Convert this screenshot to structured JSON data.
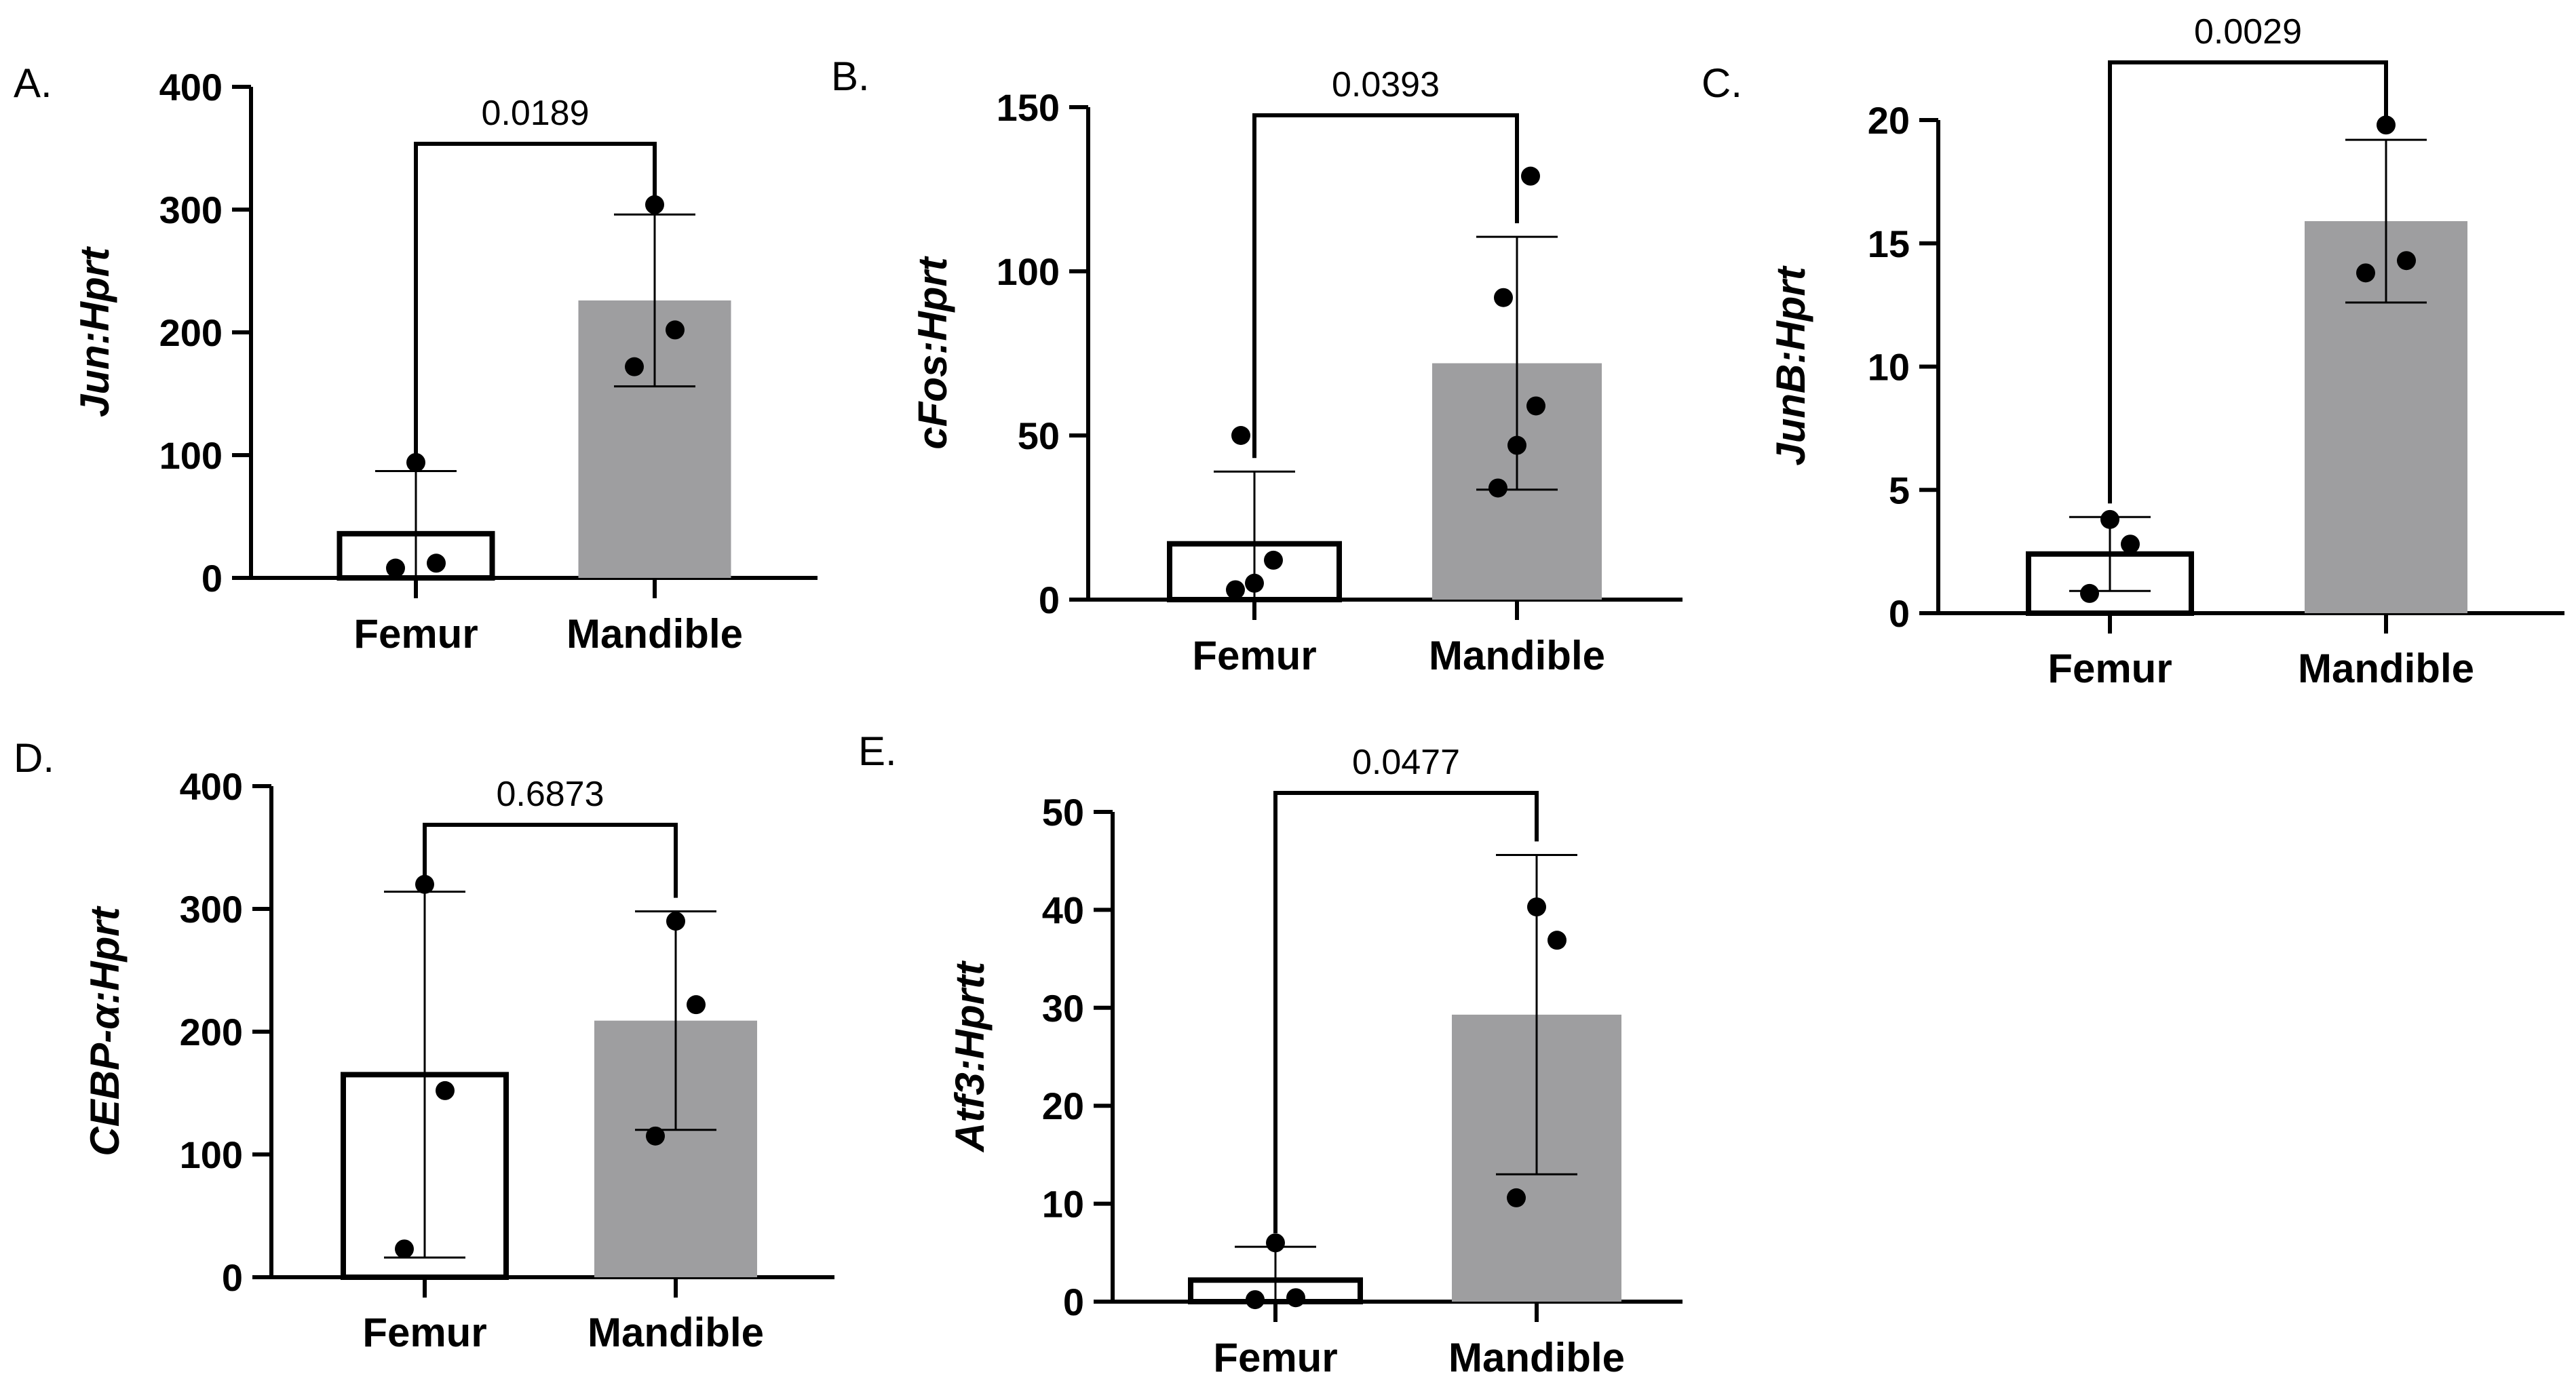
{
  "colors": {
    "axis": "#000000",
    "filled_bar": "#9e9ea0",
    "open_bar_fill": "#ffffff",
    "point": "#000000"
  },
  "chart_data": [
    {
      "panel": "A.",
      "type": "bar",
      "ylabel": "Jun:Hprt",
      "categories": [
        "Femur",
        "Mandible"
      ],
      "ylim": [
        0,
        400
      ],
      "yticks": [
        "0",
        "100",
        "200",
        "300",
        "400"
      ],
      "means": [
        36,
        226
      ],
      "sd": [
        51,
        70
      ],
      "points": [
        [
          8,
          12,
          94
        ],
        [
          172,
          202,
          304
        ]
      ],
      "p_value": "0.0189"
    },
    {
      "panel": "B.",
      "type": "bar",
      "ylabel": "cFos:Hprt",
      "categories": [
        "Femur",
        "Mandible"
      ],
      "ylim": [
        0,
        150
      ],
      "yticks": [
        "0",
        "50",
        "100",
        "150"
      ],
      "means": [
        17,
        72
      ],
      "sd": [
        22,
        38.5
      ],
      "points": [
        [
          3,
          5,
          12,
          50
        ],
        [
          34,
          47,
          59,
          92,
          129
        ]
      ],
      "p_value": "0.0393"
    },
    {
      "panel": "C.",
      "type": "bar",
      "ylabel": "JunB:Hprt",
      "categories": [
        "Femur",
        "Mandible"
      ],
      "ylim": [
        0,
        20
      ],
      "yticks": [
        "0",
        "5",
        "10",
        "15",
        "20"
      ],
      "means": [
        2.4,
        15.9
      ],
      "sd": [
        1.5,
        3.3
      ],
      "points": [
        [
          0.8,
          2.8,
          3.8
        ],
        [
          13.8,
          14.3,
          19.8
        ]
      ],
      "p_value": "0.0029"
    },
    {
      "panel": "D.",
      "type": "bar",
      "ylabel": "CEBP-α:Hprt",
      "categories": [
        "Femur",
        "Mandible"
      ],
      "ylim": [
        0,
        400
      ],
      "yticks": [
        "0",
        "100",
        "200",
        "300",
        "400"
      ],
      "means": [
        165,
        209
      ],
      "sd": [
        149,
        89
      ],
      "points": [
        [
          23,
          152,
          320
        ],
        [
          115,
          222,
          290
        ]
      ],
      "p_value": "0.6873"
    },
    {
      "panel": "E.",
      "type": "bar",
      "ylabel": "Atf3:Hprtt",
      "categories": [
        "Femur",
        "Mandible"
      ],
      "ylim": [
        0,
        50
      ],
      "yticks": [
        "0",
        "10",
        "20",
        "30",
        "40",
        "50"
      ],
      "means": [
        2.2,
        29.3
      ],
      "sd": [
        3.4,
        16.3
      ],
      "points": [
        [
          0.2,
          0.4,
          6
        ],
        [
          10.6,
          36.9,
          40.3
        ]
      ],
      "p_value": "0.0477"
    }
  ]
}
